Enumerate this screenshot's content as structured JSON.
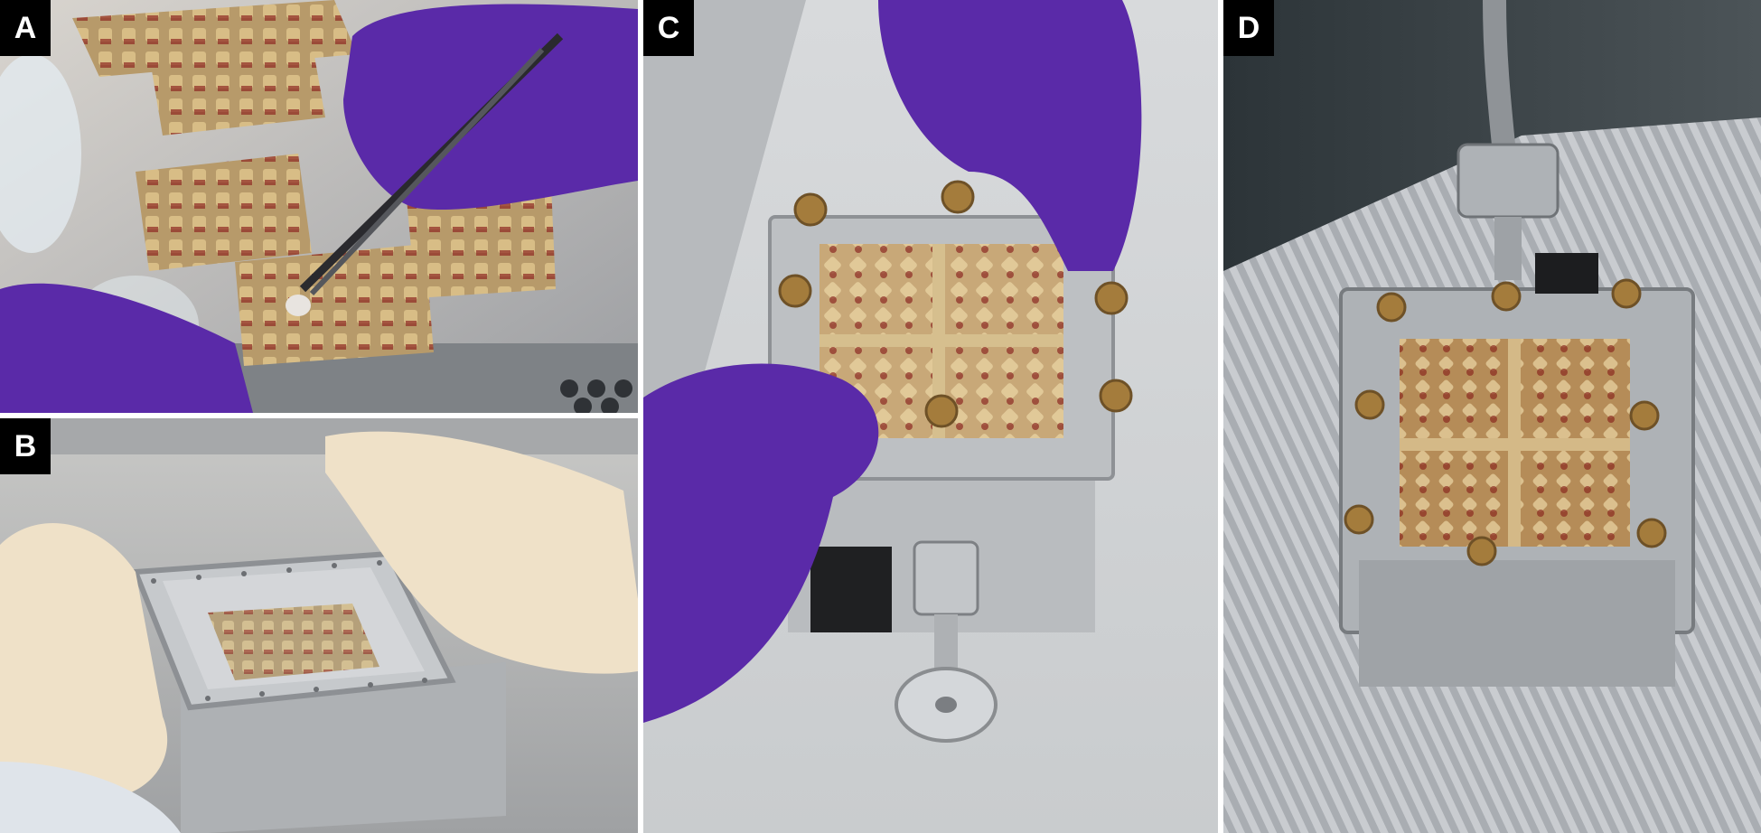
{
  "panels": [
    {
      "id": "A",
      "label": "A",
      "content": "photo"
    },
    {
      "id": "B",
      "label": "B",
      "content": "photo"
    },
    {
      "id": "C",
      "label": "C",
      "content": "photo"
    },
    {
      "id": "D",
      "label": "D",
      "content": "photo"
    }
  ],
  "colors": {
    "glove_purple": "#5a2aa8",
    "glove_latex": "#efe1c8",
    "aluminum": "#b8bcc0",
    "brass_plate": "#c9a46a",
    "sample_red": "#9a3a2a",
    "label_bg": "#000000",
    "label_fg": "#ffffff"
  }
}
